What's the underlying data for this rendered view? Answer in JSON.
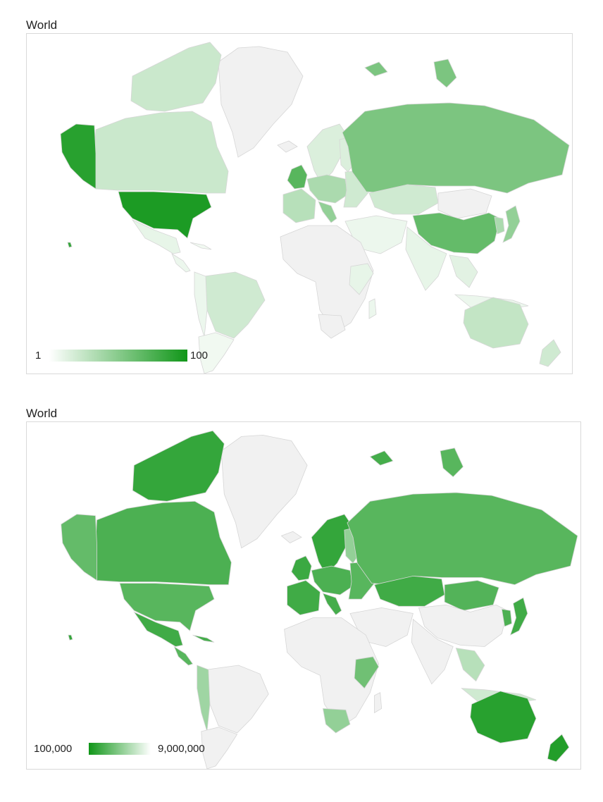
{
  "maps": [
    {
      "title": "World",
      "legend": {
        "min_label": "1",
        "max_label": "100",
        "min_color": "#ffffff",
        "max_color": "#109618"
      },
      "region_values": {
        "united-states": 95,
        "alaska": 90,
        "canada": 22,
        "canadian-arctic": 22,
        "greenland": 0,
        "mexico": 10,
        "central-america": 8,
        "caribbean": 6,
        "hawaii": 85,
        "brazil": 20,
        "andes": 8,
        "argentina-chile": 6,
        "russia": 55,
        "russian-islands": 55,
        "kazakhstan": 20,
        "mongolia": 0,
        "china": 65,
        "japan": 45,
        "korea": 35,
        "india": 10,
        "middle-east": 8,
        "southeast-asia": 12,
        "indonesia": 8,
        "australia": 25,
        "new-zealand": 20,
        "uk-ireland": 70,
        "france-iberia": 30,
        "italy": 45,
        "central-europe": 35,
        "scandinavia": 15,
        "finland": 15,
        "eastern-europe": 20,
        "svalbard": 55,
        "africa": 0,
        "east-africa": 10,
        "madagascar": 8,
        "iceland": 0
      }
    },
    {
      "title": "World",
      "legend": {
        "min_label": "100,000",
        "max_label": "9,000,000",
        "min_color": "#109618",
        "max_color": "#ffffff"
      },
      "region_values": {
        "canada": 75,
        "canadian-arctic": 85,
        "alaska": 65,
        "united-states": 70,
        "mexico": 80,
        "central-america": 70,
        "caribbean": 78,
        "hawaii": 85,
        "greenland": 0,
        "brazil": 0,
        "andes": 40,
        "argentina-chile": 0,
        "russia": 70,
        "russian-islands": 70,
        "kazakhstan": 80,
        "mongolia": 72,
        "china": 0,
        "japan": 80,
        "korea": 75,
        "india": 0,
        "middle-east": 0,
        "southeast-asia": 30,
        "indonesia": 20,
        "australia": 90,
        "new-zealand": 92,
        "uk-ireland": 82,
        "france-iberia": 80,
        "italy": 78,
        "central-europe": 75,
        "scandinavia": 85,
        "finland": 45,
        "eastern-europe": 70,
        "svalbard": 78,
        "africa": 0,
        "east-africa": 60,
        "south-africa": 45,
        "madagascar": 0,
        "iceland": 0
      }
    }
  ]
}
